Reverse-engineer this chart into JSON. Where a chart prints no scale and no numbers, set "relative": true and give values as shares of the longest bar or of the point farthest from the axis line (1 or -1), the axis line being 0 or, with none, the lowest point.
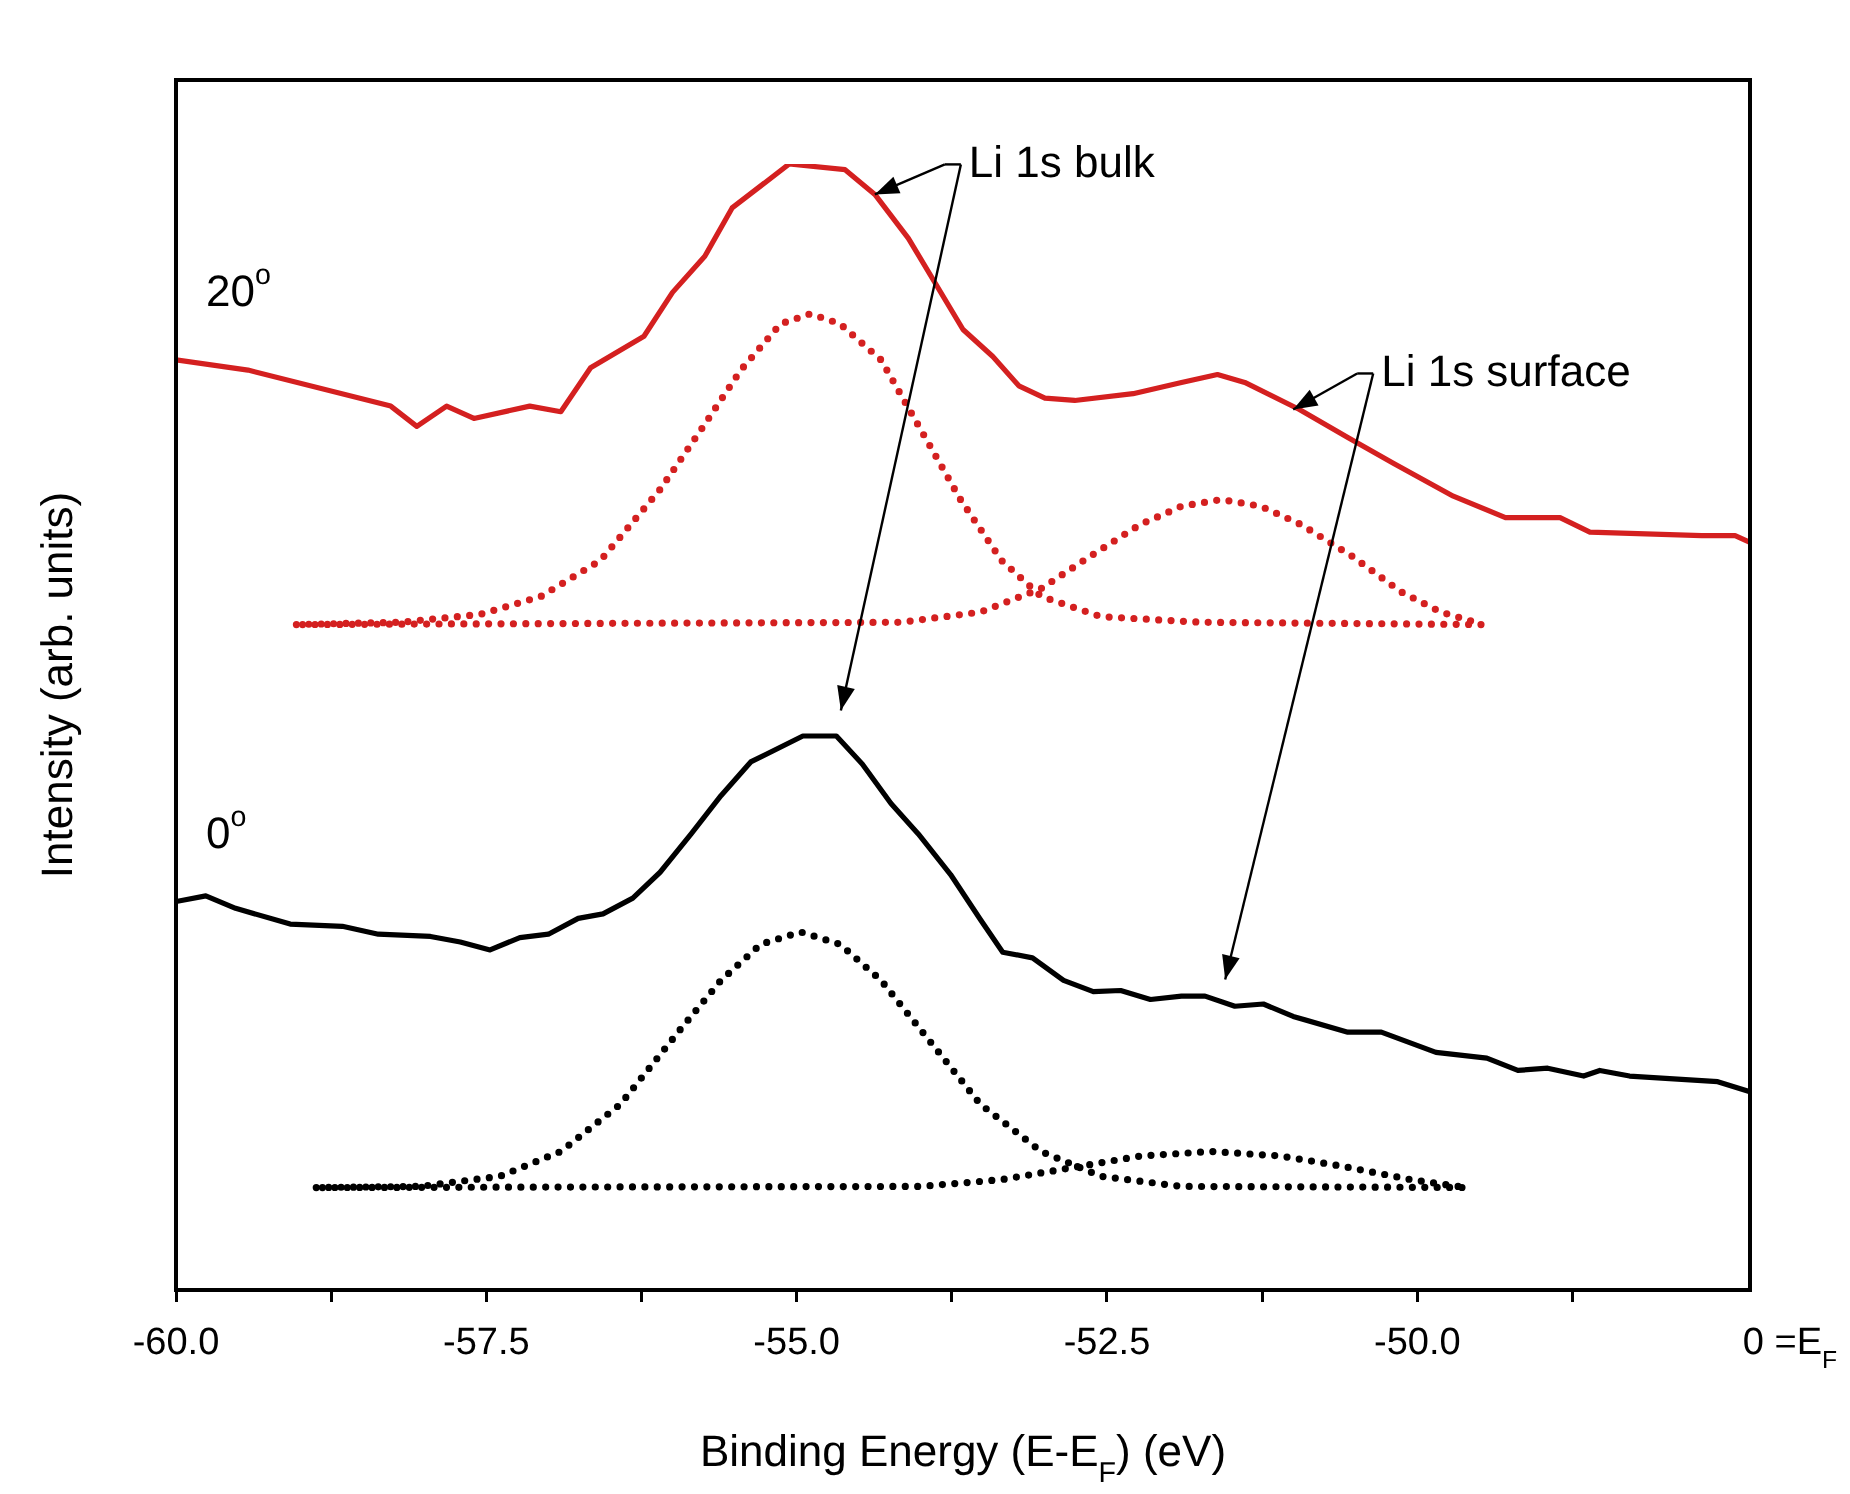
{
  "chart_data": {
    "type": "line",
    "relative": true,
    "xlabel": "Binding Energy (E-E$_{F}$) (eV)",
    "ylabel": "Intensity (arb. units)",
    "xlim": [
      -60,
      -47.32
    ],
    "xticks": [
      {
        "value": -60,
        "label": "-60.0"
      },
      {
        "value": -58.75,
        "label": null
      },
      {
        "value": -57.5,
        "label": "-57.5"
      },
      {
        "value": -56.25,
        "label": null
      },
      {
        "value": -55,
        "label": "-55.0"
      },
      {
        "value": -53.75,
        "label": null
      },
      {
        "value": -52.5,
        "label": "-52.5"
      },
      {
        "value": -51.25,
        "label": null
      },
      {
        "value": -50,
        "label": "-50.0"
      },
      {
        "value": -48.75,
        "label": null
      }
    ],
    "tick_labels": "x",
    "grid": false,
    "legend": false,
    "marker": "none",
    "annotations": [
      {
        "text": "Li 1s bulk",
        "x": -54.37,
        "y": 0.973
      },
      {
        "text": "Li 1s surface",
        "x": -51.0,
        "y": 0.782
      },
      "0 =E$_{F}$"
    ],
    "series": [
      {
        "name": "20$^{o}$",
        "color": "#d42020",
        "line_style": "solid",
        "x": [
          -60.0,
          -59.42,
          -58.27,
          -58.06,
          -57.82,
          -57.6,
          -57.15,
          -56.9,
          -56.66,
          -56.23,
          -56.0,
          -55.74,
          -55.52,
          -55.06,
          -54.61,
          -54.37,
          -54.1,
          -53.66,
          -53.42,
          -53.21,
          -53.0,
          -52.76,
          -52.29,
          -51.9,
          -51.61,
          -51.39,
          -50.95,
          -50.56,
          -50.19,
          -49.71,
          -49.29,
          -48.85,
          -48.61,
          -47.71,
          -47.44,
          -47.32
        ],
        "values": [
          0.826,
          0.817,
          0.785,
          0.767,
          0.785,
          0.774,
          0.785,
          0.78,
          0.819,
          0.847,
          0.886,
          0.918,
          0.961,
          1.0,
          0.995,
          0.973,
          0.934,
          0.853,
          0.829,
          0.803,
          0.792,
          0.79,
          0.796,
          0.806,
          0.813,
          0.806,
          0.782,
          0.757,
          0.734,
          0.705,
          0.686,
          0.686,
          0.673,
          0.67,
          0.67,
          0.664
        ]
      },
      {
        "color": "#d42020",
        "line_style": "dotted",
        "x": [
          -59.03,
          -58.19,
          -57.55,
          -57.06,
          -56.58,
          -56.1,
          -55.77,
          -55.45,
          -55.13,
          -54.89,
          -54.65,
          -54.32,
          -54.0,
          -53.68,
          -53.35,
          -53.03,
          -52.55,
          -51.74,
          -49.48
        ],
        "values": [
          0.591,
          0.593,
          0.6,
          0.616,
          0.648,
          0.711,
          0.764,
          0.817,
          0.858,
          0.867,
          0.858,
          0.826,
          0.764,
          0.702,
          0.648,
          0.616,
          0.598,
          0.593,
          0.591
        ]
      },
      {
        "color": "#d42020",
        "line_style": "dotted",
        "x": [
          -58.98,
          -54.16,
          -53.52,
          -53.03,
          -52.63,
          -52.23,
          -51.9,
          -51.58,
          -51.26,
          -50.94,
          -50.53,
          -50.13,
          -49.81,
          -49.53
        ],
        "values": [
          0.591,
          0.593,
          0.602,
          0.623,
          0.652,
          0.68,
          0.696,
          0.702,
          0.696,
          0.68,
          0.652,
          0.62,
          0.602,
          0.593
        ]
      },
      {
        "name": "0$^{o}$",
        "color": "#000000",
        "line_style": "solid",
        "x": [
          -60.0,
          -59.76,
          -59.52,
          -59.08,
          -58.66,
          -58.37,
          -57.95,
          -57.71,
          -57.47,
          -57.23,
          -57.0,
          -56.76,
          -56.56,
          -56.32,
          -56.1,
          -55.85,
          -55.61,
          -55.37,
          -54.95,
          -54.68,
          -54.47,
          -54.24,
          -54.02,
          -53.76,
          -53.52,
          -53.34,
          -53.1,
          -52.85,
          -52.61,
          -52.39,
          -52.15,
          -51.9,
          -51.71,
          -51.47,
          -51.24,
          -51.0,
          -50.56,
          -50.29,
          -49.85,
          -49.44,
          -49.19,
          -48.95,
          -48.66,
          -48.53,
          -48.29,
          -48.0,
          -47.58,
          -47.32
        ],
        "values": [
          0.345,
          0.35,
          0.339,
          0.325,
          0.323,
          0.316,
          0.314,
          0.309,
          0.302,
          0.313,
          0.316,
          0.33,
          0.334,
          0.348,
          0.371,
          0.405,
          0.439,
          0.469,
          0.492,
          0.492,
          0.467,
          0.432,
          0.405,
          0.369,
          0.329,
          0.3,
          0.295,
          0.275,
          0.265,
          0.266,
          0.258,
          0.261,
          0.261,
          0.252,
          0.254,
          0.243,
          0.229,
          0.229,
          0.211,
          0.206,
          0.195,
          0.197,
          0.19,
          0.195,
          0.19,
          0.188,
          0.185,
          0.176
        ]
      },
      {
        "color": "#000000",
        "line_style": "dotted",
        "x": [
          -58.87,
          -58.03,
          -57.39,
          -56.9,
          -56.42,
          -55.94,
          -55.61,
          -55.29,
          -54.97,
          -54.65,
          -54.32,
          -54.0,
          -53.52,
          -53.03,
          -52.55,
          -51.9,
          -49.56
        ],
        "values": [
          0.091,
          0.092,
          0.101,
          0.123,
          0.165,
          0.231,
          0.275,
          0.307,
          0.318,
          0.307,
          0.275,
          0.231,
          0.165,
          0.123,
          0.101,
          0.092,
          0.091
        ]
      },
      {
        "color": "#000000",
        "line_style": "dotted",
        "x": [
          -58.82,
          -54.0,
          -53.35,
          -52.71,
          -52.23,
          -51.66,
          -51.1,
          -50.61,
          -50.05,
          -49.61
        ],
        "values": [
          0.091,
          0.092,
          0.098,
          0.11,
          0.119,
          0.123,
          0.119,
          0.11,
          0.098,
          0.091
        ]
      }
    ]
  }
}
